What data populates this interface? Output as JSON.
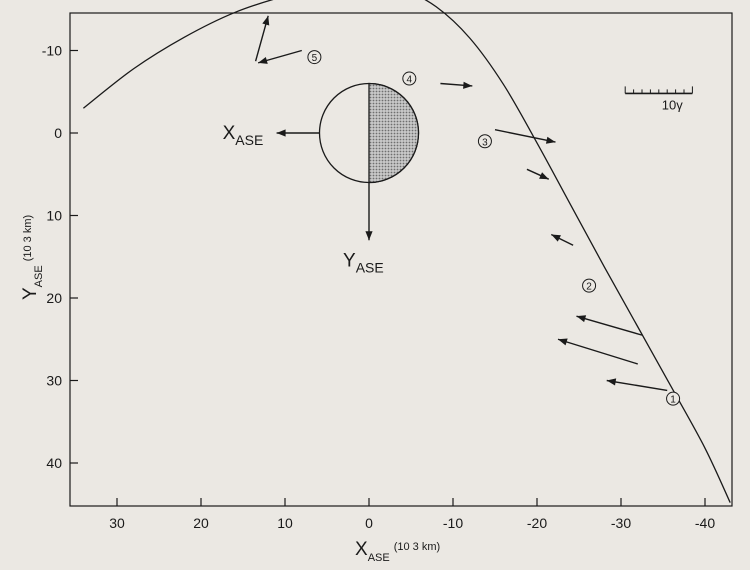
{
  "chart_data": {
    "type": "scatter",
    "xaxis": {
      "label_main": "X",
      "label_sub": "ASE",
      "label_unit": "(10 3 km)",
      "ticks": [
        30,
        20,
        10,
        0,
        -10,
        -20,
        -30,
        -40
      ],
      "range": [
        37.5,
        -43.5
      ],
      "direction": "decreasing-right"
    },
    "yaxis": {
      "label_main": "Y",
      "label_sub": "ASE",
      "label_unit": "(10 3 km)",
      "ticks": [
        -10,
        0,
        10,
        20,
        30,
        40
      ],
      "range": [
        -15,
        45
      ],
      "direction": "increasing-down"
    },
    "grid": false,
    "trajectory": {
      "x": [
        34,
        28,
        22,
        16,
        10,
        5,
        0,
        -4,
        -8,
        -12,
        -16,
        -20,
        -24,
        -28,
        -32,
        -36,
        -40,
        -43
      ],
      "y": [
        -3,
        -7.8,
        -11.6,
        -14.6,
        -16.6,
        -17.7,
        -18.1,
        -17.4,
        -15.3,
        -11.5,
        -5.9,
        1.2,
        8.7,
        16.2,
        23.5,
        30.8,
        38.2,
        44.8
      ]
    },
    "sun_disk": {
      "x": 0,
      "y": 0,
      "radius": 6
    },
    "inline_axis_labels": {
      "x": {
        "main": "X",
        "sub": "ASE",
        "tip": [
          11,
          0
        ]
      },
      "y": {
        "main": "Y",
        "sub": "ASE",
        "tip": [
          0,
          13
        ]
      }
    },
    "markers": [
      {
        "label": "1",
        "x": -36.2,
        "y": 32.2
      },
      {
        "label": "2",
        "x": -26.2,
        "y": 18.5
      },
      {
        "label": "3",
        "x": -13.8,
        "y": 1.0
      },
      {
        "label": "4",
        "x": -4.8,
        "y": -6.6
      },
      {
        "label": "5",
        "x": 6.5,
        "y": -9.2
      }
    ],
    "vectors": [
      {
        "x": -35.5,
        "y": 31.2,
        "dx": 7.2,
        "dy": -1.2
      },
      {
        "x": -32.0,
        "y": 28.0,
        "dx": 9.5,
        "dy": -3.0
      },
      {
        "x": -32.5,
        "y": 24.5,
        "dx": 7.8,
        "dy": -2.3
      },
      {
        "x": -24.3,
        "y": 13.6,
        "dx": 2.6,
        "dy": -1.3
      },
      {
        "x": -18.8,
        "y": 4.4,
        "dx": -2.6,
        "dy": 1.2
      },
      {
        "x": -15.0,
        "y": -0.4,
        "dx": -7.2,
        "dy": 1.5
      },
      {
        "x": -8.5,
        "y": -6.0,
        "dx": -3.8,
        "dy": 0.3
      },
      {
        "x": 8.0,
        "y": -10.0,
        "dx": 5.2,
        "dy": 1.5
      },
      {
        "x": 13.5,
        "y": -8.7,
        "dx": -1.5,
        "dy": -5.5
      }
    ],
    "scale_bar": {
      "label": "10γ",
      "x0": -30.5,
      "x1": -38.5,
      "y": -4.8
    }
  },
  "colors": {
    "background": "#ebe8e3",
    "ink": "#1a1a1a",
    "shade": "#8c8c8c"
  }
}
